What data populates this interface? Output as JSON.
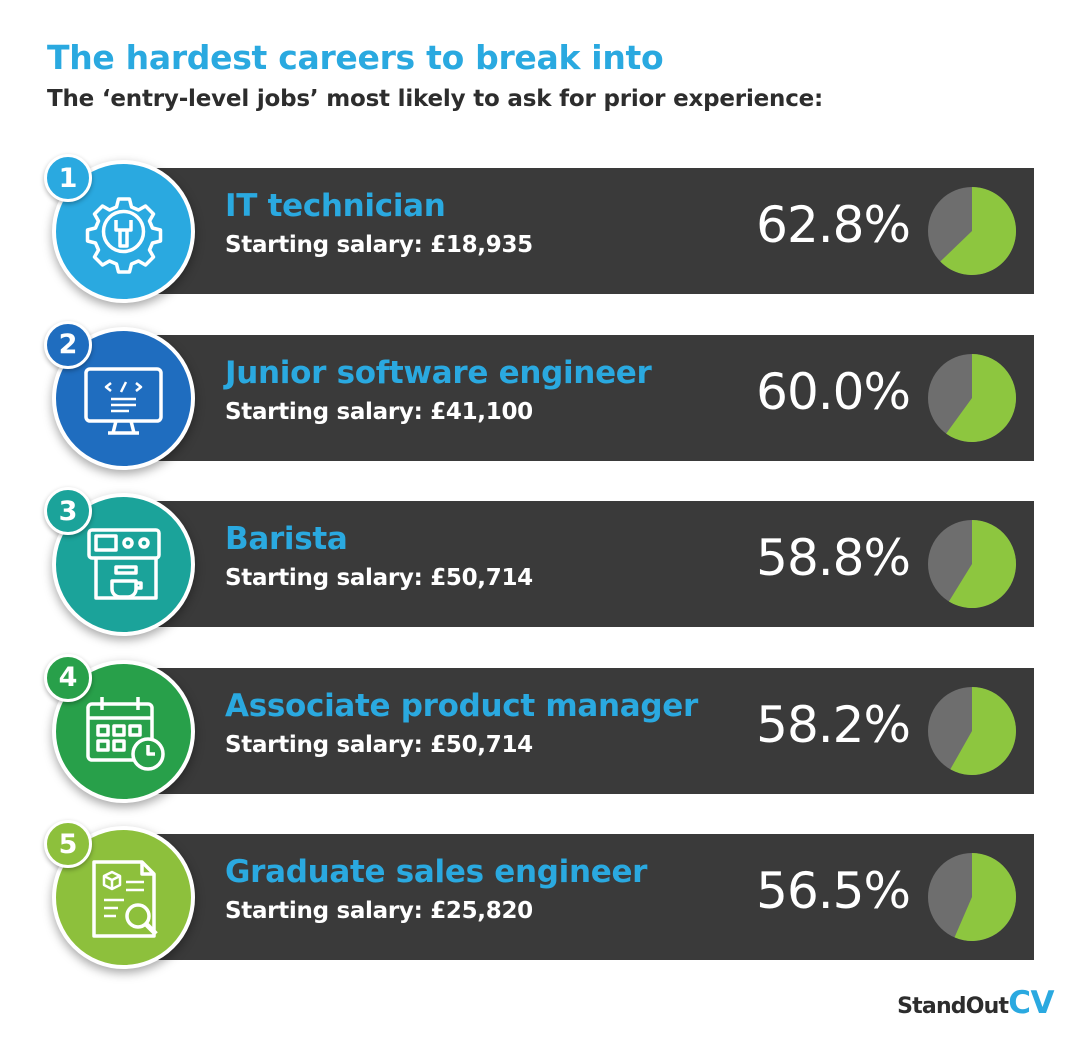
{
  "header": {
    "title": "The hardest careers to break into",
    "subtitle": "The ‘entry-level jobs’ most likely to ask for prior experience:"
  },
  "chart_data": {
    "type": "table",
    "categories": [
      "IT technician",
      "Junior software engineer",
      "Barista",
      "Associate product manager",
      "Graduate sales engineer"
    ],
    "values": [
      62.8,
      60.0,
      58.8,
      58.2,
      56.5
    ],
    "rows": [
      {
        "rank": "1",
        "job": "IT technician",
        "salary": "Starting salary: £18,935",
        "percent_label": "62.8%",
        "value": 62.8,
        "icon": "gear-wrench-icon",
        "color": "#2aa9e0"
      },
      {
        "rank": "2",
        "job": "Junior software engineer",
        "salary": "Starting salary: £41,100",
        "percent_label": "60.0%",
        "value": 60.0,
        "icon": "computer-monitor-icon",
        "color": "#1f6dbf"
      },
      {
        "rank": "3",
        "job": "Barista",
        "salary": "Starting salary: £50,714",
        "percent_label": "58.8%",
        "value": 58.8,
        "icon": "coffee-machine-icon",
        "color": "#1ba39a"
      },
      {
        "rank": "4",
        "job": "Associate product manager",
        "salary": "Starting salary: £50,714",
        "percent_label": "58.2%",
        "value": 58.2,
        "icon": "calendar-clock-icon",
        "color": "#28a04a"
      },
      {
        "rank": "5",
        "job": "Graduate sales engineer",
        "salary": "Starting salary: £25,820",
        "percent_label": "56.5%",
        "value": 56.5,
        "icon": "document-search-icon",
        "color": "#8dc03c"
      }
    ],
    "pie_colors": {
      "filled": "#8dc63f",
      "remaining": "#6e6e6e"
    }
  },
  "logo": {
    "part1": "StandOut",
    "part2": "CV"
  }
}
